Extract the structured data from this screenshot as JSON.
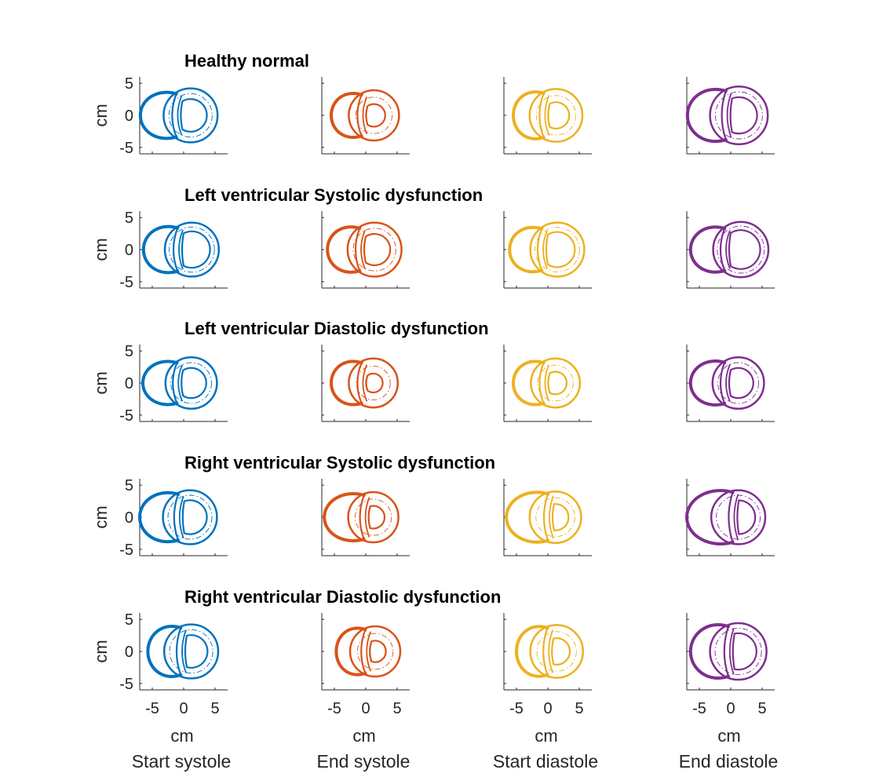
{
  "chart_data": {
    "type": "line",
    "x_unit_label": "cm",
    "y_unit_label": "cm",
    "xlim": [
      -7,
      7
    ],
    "ylim": [
      -6,
      6
    ],
    "x_ticks": [
      "-5",
      "0",
      "5"
    ],
    "y_ticks": [
      "5",
      "0",
      "-5"
    ],
    "grid": false,
    "columns": [
      {
        "label": "Start systole",
        "color": "#0072BD"
      },
      {
        "label": "End systole",
        "color": "#D95319"
      },
      {
        "label": "Start diastole",
        "color": "#EDB120"
      },
      {
        "label": "End diastole",
        "color": "#7E2F8E"
      }
    ],
    "rows": [
      {
        "title": "Healthy normal",
        "panels": [
          {
            "rv_left": -6.9,
            "lv_center": 1.1,
            "lv_radius": 4.3,
            "lv_inner": 2.6,
            "septum_x": -1.2
          },
          {
            "rv_left": -5.5,
            "lv_center": 1.3,
            "lv_radius": 4.0,
            "lv_inner": 1.8,
            "septum_x": -0.7
          },
          {
            "rv_left": -5.5,
            "lv_center": 1.3,
            "lv_radius": 4.2,
            "lv_inner": 2.1,
            "septum_x": -0.7
          },
          {
            "rv_left": -6.9,
            "lv_center": 1.3,
            "lv_radius": 4.6,
            "lv_inner": 2.9,
            "septum_x": -0.8
          }
        ]
      },
      {
        "title": "Left ventricular Systolic dysfunction",
        "panels": [
          {
            "rv_left": -6.4,
            "lv_center": 1.3,
            "lv_radius": 4.3,
            "lv_inner": 2.9,
            "septum_x": -1.0
          },
          {
            "rv_left": -6.1,
            "lv_center": 1.4,
            "lv_radius": 4.3,
            "lv_inner": 2.5,
            "septum_x": -1.0
          },
          {
            "rv_left": -6.1,
            "lv_center": 1.5,
            "lv_radius": 4.3,
            "lv_inner": 2.8,
            "septum_x": -1.0
          },
          {
            "rv_left": -6.4,
            "lv_center": 1.6,
            "lv_radius": 4.4,
            "lv_inner": 3.1,
            "septum_x": -1.0
          }
        ]
      },
      {
        "title": "Left ventricular Diastolic dysfunction",
        "panels": [
          {
            "rv_left": -6.5,
            "lv_center": 1.2,
            "lv_radius": 4.1,
            "lv_inner": 2.4,
            "septum_x": -1.1
          },
          {
            "rv_left": -5.5,
            "lv_center": 1.2,
            "lv_radius": 3.9,
            "lv_inner": 1.5,
            "septum_x": -0.7
          },
          {
            "rv_left": -5.5,
            "lv_center": 1.2,
            "lv_radius": 3.9,
            "lv_inner": 1.8,
            "septum_x": -0.7
          },
          {
            "rv_left": -6.4,
            "lv_center": 1.2,
            "lv_radius": 4.1,
            "lv_inner": 2.4,
            "septum_x": -1.0
          }
        ]
      },
      {
        "title": "Right ventricular Systolic dysfunction",
        "panels": [
          {
            "rv_left": -7.0,
            "lv_center": 1.0,
            "lv_radius": 4.3,
            "lv_inner": 2.7,
            "septum_x": -0.9
          },
          {
            "rv_left": -6.6,
            "lv_center": 1.2,
            "lv_radius": 4.0,
            "lv_inner": 1.8,
            "septum_x": -0.3
          },
          {
            "rv_left": -6.6,
            "lv_center": 1.2,
            "lv_radius": 4.1,
            "lv_inner": 2.1,
            "septum_x": 0.0
          },
          {
            "rv_left": -7.0,
            "lv_center": 1.2,
            "lv_radius": 4.3,
            "lv_inner": 2.7,
            "septum_x": 0.3
          }
        ]
      },
      {
        "title": "Right ventricular Diastolic dysfunction",
        "panels": [
          {
            "rv_left": -5.7,
            "lv_center": 1.2,
            "lv_radius": 4.3,
            "lv_inner": 2.6,
            "septum_x": -0.5
          },
          {
            "rv_left": -4.7,
            "lv_center": 1.5,
            "lv_radius": 4.0,
            "lv_inner": 1.7,
            "septum_x": -0.1
          },
          {
            "rv_left": -5.0,
            "lv_center": 1.4,
            "lv_radius": 4.2,
            "lv_inner": 2.1,
            "septum_x": -0.1
          },
          {
            "rv_left": -6.4,
            "lv_center": 1.2,
            "lv_radius": 4.5,
            "lv_inner": 2.9,
            "septum_x": -0.4
          }
        ]
      }
    ]
  }
}
